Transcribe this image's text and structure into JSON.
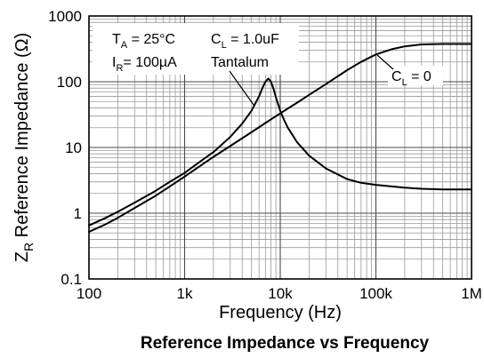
{
  "chart_data": {
    "type": "line",
    "title": "Reference Impedance vs Frequency",
    "xlabel": "Frequency (Hz)",
    "ylabel": {
      "main": "Z",
      "sub": "R",
      "rest": " Reference Impedance (Ω)"
    },
    "xscale": "log",
    "yscale": "log",
    "xlim": [
      100,
      1000000
    ],
    "ylim": [
      0.1,
      1000
    ],
    "grid": true,
    "x_ticks": [
      {
        "value": 100,
        "label": "100"
      },
      {
        "value": 1000,
        "label": "1k"
      },
      {
        "value": 10000,
        "label": "10k"
      },
      {
        "value": 100000,
        "label": "100k"
      },
      {
        "value": 1000000,
        "label": "1M"
      }
    ],
    "y_ticks": [
      {
        "value": 0.1,
        "label": "0.1"
      },
      {
        "value": 1,
        "label": "1"
      },
      {
        "value": 10,
        "label": "10"
      },
      {
        "value": 100,
        "label": "100"
      },
      {
        "value": 1000,
        "label": "1000"
      }
    ],
    "annotations": {
      "ta": {
        "main": "T",
        "sub": "A",
        "rest": " = 25°C"
      },
      "ir": {
        "main": "I",
        "sub": "R",
        "rest": "= 100µA"
      },
      "cl1": {
        "main": "C",
        "sub": "L",
        "rest": " = 1.0uF"
      },
      "tantalum": "Tantalum",
      "cl0": {
        "main": "C",
        "sub": "L",
        "rest": " = 0"
      }
    },
    "series": [
      {
        "label_key": "cl1",
        "x": [
          100,
          150,
          200,
          300,
          500,
          700,
          1000,
          1500,
          2000,
          3000,
          4000,
          5000,
          6000,
          6500,
          7000,
          7500,
          8000,
          8500,
          9000,
          10000,
          11000,
          12000,
          15000,
          20000,
          30000,
          50000,
          70000,
          100000,
          200000,
          300000,
          500000,
          1000000
        ],
        "y": [
          0.65,
          0.85,
          1.05,
          1.45,
          2.2,
          3.0,
          4.1,
          6.3,
          8.5,
          14.5,
          23.0,
          36.0,
          60.0,
          80.0,
          100.0,
          112.0,
          100.0,
          78.0,
          58.0,
          36.0,
          26.0,
          20.0,
          12.0,
          7.5,
          4.8,
          3.3,
          2.9,
          2.7,
          2.45,
          2.35,
          2.3,
          2.3
        ]
      },
      {
        "label_key": "cl0",
        "x": [
          100,
          150,
          200,
          300,
          500,
          700,
          1000,
          1500,
          2000,
          3000,
          5000,
          7000,
          10000,
          15000,
          20000,
          30000,
          50000,
          70000,
          100000,
          150000,
          200000,
          300000,
          500000,
          1000000
        ],
        "y": [
          0.52,
          0.68,
          0.85,
          1.2,
          1.85,
          2.55,
          3.6,
          5.4,
          7.2,
          10.5,
          17.0,
          23.5,
          33.0,
          48.0,
          63.0,
          92.0,
          150.0,
          200.0,
          260.0,
          315.0,
          345.0,
          370.0,
          375.0,
          375.0
        ]
      }
    ]
  }
}
